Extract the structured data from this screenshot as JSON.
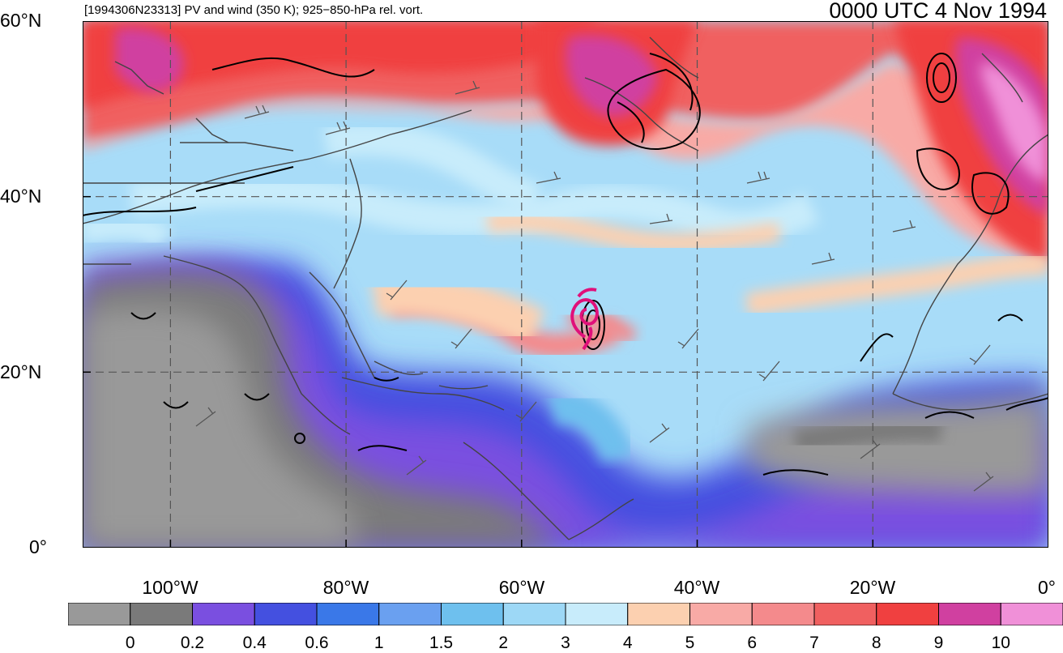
{
  "header": {
    "left_title": "[1994306N23313] PV and wind (350 K); 925−850-hPa rel. vort.",
    "right_title": "0000 UTC 4 Nov 1994"
  },
  "map": {
    "lat_labels": [
      "60°N",
      "40°N",
      "20°N",
      "0°"
    ],
    "lon_labels": [
      "100°W",
      "80°W",
      "60°W",
      "40°W",
      "20°W",
      "0°"
    ],
    "lon_range": [
      -110,
      0
    ],
    "lat_range": [
      0,
      60
    ],
    "gridlines": "dashed",
    "colors": {
      "land_outline": "#444444",
      "vorticity_contours": "#000000",
      "storm_track": "#e0107a"
    }
  },
  "colorbar": {
    "colors": [
      "#999999",
      "#7a7a7a",
      "#7a4fe0",
      "#4450e0",
      "#3a78e8",
      "#6aa0f0",
      "#6ec0ee",
      "#9dd8f6",
      "#c8ecfb",
      "#fcd0b0",
      "#f8aaa6",
      "#f48a8c",
      "#f06060",
      "#f04040",
      "#d040a0",
      "#f090d8"
    ],
    "tick_labels": [
      "0",
      "0.2",
      "0.4",
      "0.6",
      "1",
      "1.5",
      "2",
      "3",
      "4",
      "5",
      "6",
      "7",
      "8",
      "9",
      "10"
    ]
  }
}
